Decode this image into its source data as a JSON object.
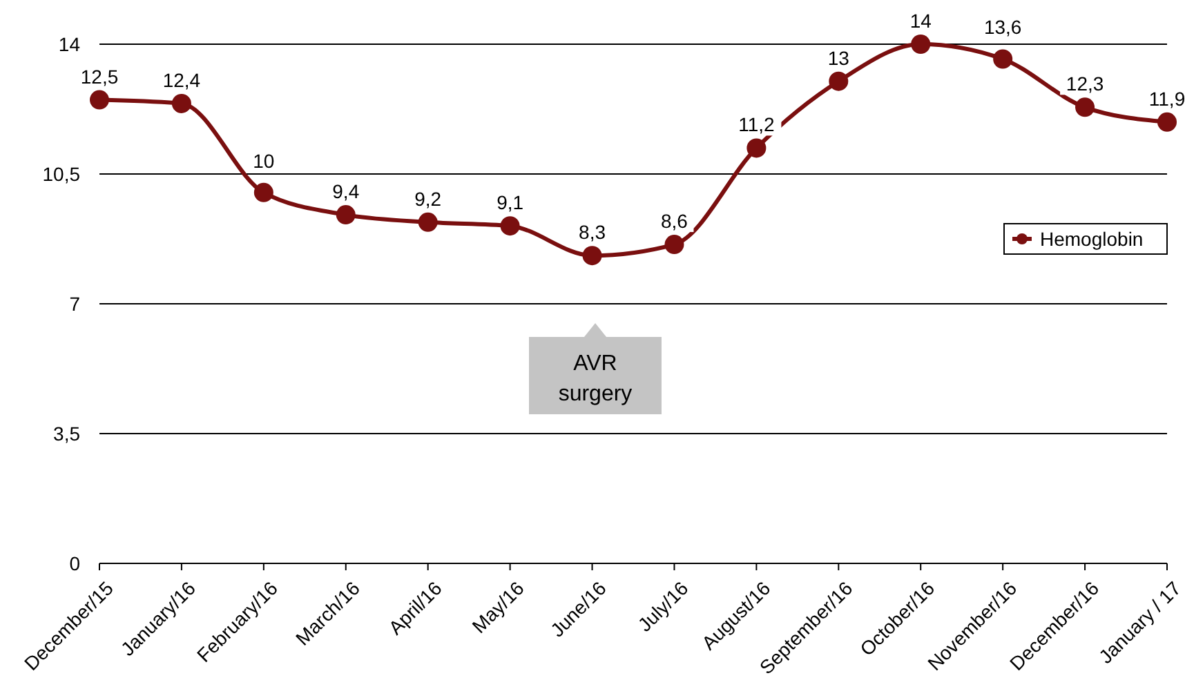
{
  "chart_data": {
    "type": "line",
    "categories": [
      "December/15",
      "January/16",
      "February/16",
      "March/16",
      "April/16",
      "May/16",
      "June/16",
      "July/16",
      "August/16",
      "September/16",
      "October/16",
      "November/16",
      "December/16",
      "January / 17"
    ],
    "series": [
      {
        "name": "Hemoglobin",
        "color": "#7a0f0f",
        "values": [
          12.5,
          12.4,
          10,
          9.4,
          9.2,
          9.1,
          8.3,
          8.6,
          11.2,
          13,
          14,
          13.6,
          12.3,
          11.9
        ],
        "value_labels": [
          "12,5",
          "12,4",
          "10",
          "9,4",
          "9,2",
          "9,1",
          "8,3",
          "8,6",
          "11,2",
          "13",
          "14",
          "13,6",
          "12,3",
          "11,9"
        ]
      }
    ],
    "ylim": [
      0,
      14
    ],
    "yticks": [
      0,
      {
        "value": 3.5,
        "label": "3,5"
      },
      7,
      {
        "value": 10.5,
        "label": "10,5"
      },
      14
    ],
    "grid": "y",
    "legend": "right",
    "marker": "circle",
    "line_style": "solid",
    "annotations": [
      "AVR surgery"
    ]
  }
}
